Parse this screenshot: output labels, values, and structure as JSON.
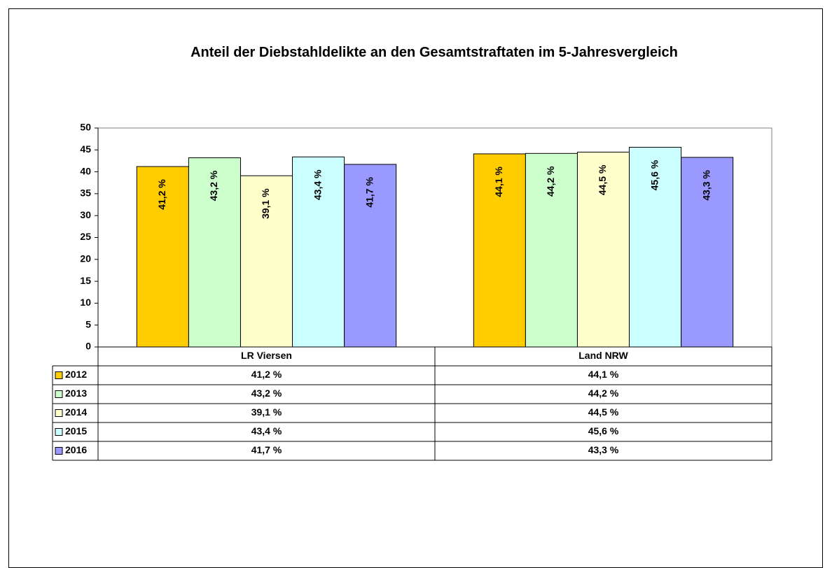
{
  "chart_data": {
    "type": "bar",
    "title": "Anteil der Diebstahldelikte an den Gesamtstraftaten im 5-Jahresvergleich",
    "categories": [
      "LR Viersen",
      "Land NRW"
    ],
    "series": [
      {
        "name": "2012",
        "color": "#ffcc00",
        "values": [
          41.2,
          44.1
        ],
        "value_labels": [
          "41,2 %",
          "44,1 %"
        ]
      },
      {
        "name": "2013",
        "color": "#ccffcc",
        "values": [
          43.2,
          44.2
        ],
        "value_labels": [
          "43,2 %",
          "44,2 %"
        ]
      },
      {
        "name": "2014",
        "color": "#ffffcc",
        "values": [
          39.1,
          44.5
        ],
        "value_labels": [
          "39,1 %",
          "44,5 %"
        ]
      },
      {
        "name": "2015",
        "color": "#ccffff",
        "values": [
          43.4,
          45.6
        ],
        "value_labels": [
          "43,4 %",
          "45,6 %"
        ]
      },
      {
        "name": "2016",
        "color": "#9999ff",
        "values": [
          41.7,
          43.3
        ],
        "value_labels": [
          "41,7 %",
          "43,3 %"
        ]
      }
    ],
    "ylim": [
      0,
      50
    ],
    "yticks": [
      0,
      5,
      10,
      15,
      20,
      25,
      30,
      35,
      40,
      45,
      50
    ]
  }
}
